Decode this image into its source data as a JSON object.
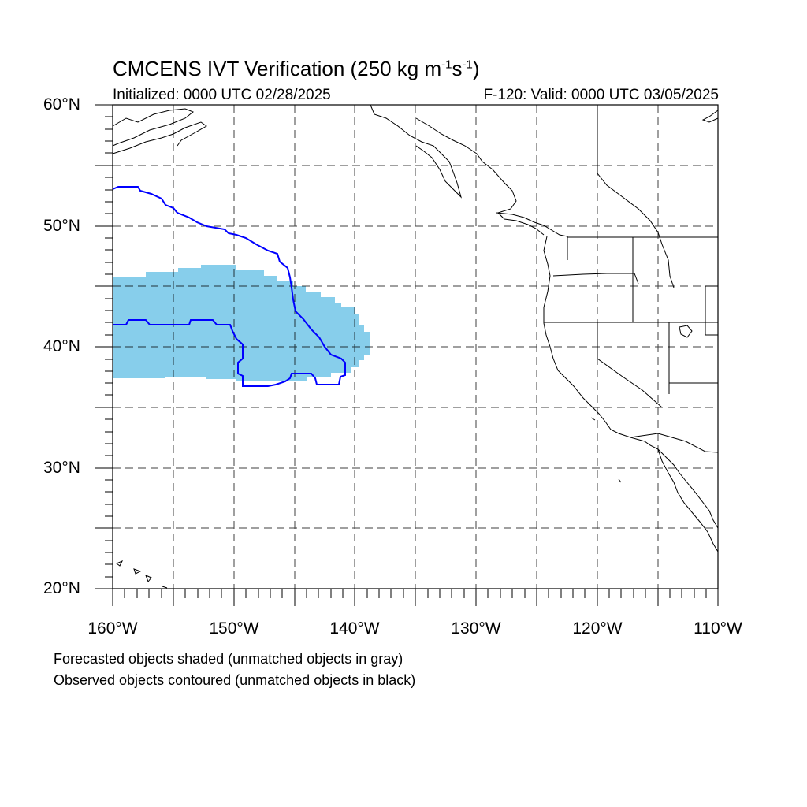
{
  "title_main": "CMCENS IVT Verification (250 kg m",
  "title_sup1": "-1",
  "title_mid": "s",
  "title_sup2": "-1",
  "title_end": ")",
  "initialized": "Initialized: 0000 UTC 02/28/2025",
  "valid": "F-120: Valid: 0000 UTC 03/05/2025",
  "lat_labels": [
    "60°N",
    "50°N",
    "40°N",
    "30°N",
    "20°N"
  ],
  "lon_labels": [
    "160°W",
    "150°W",
    "140°W",
    "130°W",
    "120°W",
    "110°W"
  ],
  "extent": {
    "lon_min": -160,
    "lon_max": -110,
    "lat_min": 20,
    "lat_max": 60
  },
  "colors": {
    "forecast_fill": "#87ceeb",
    "observed_contour": "#0000ff",
    "coastline": "#000000",
    "grid": "#000000"
  },
  "notes": {
    "forecast": "Forecasted objects shaded (unmatched objects in gray)",
    "observed": "Observed objects contoured (unmatched objects in black)"
  }
}
